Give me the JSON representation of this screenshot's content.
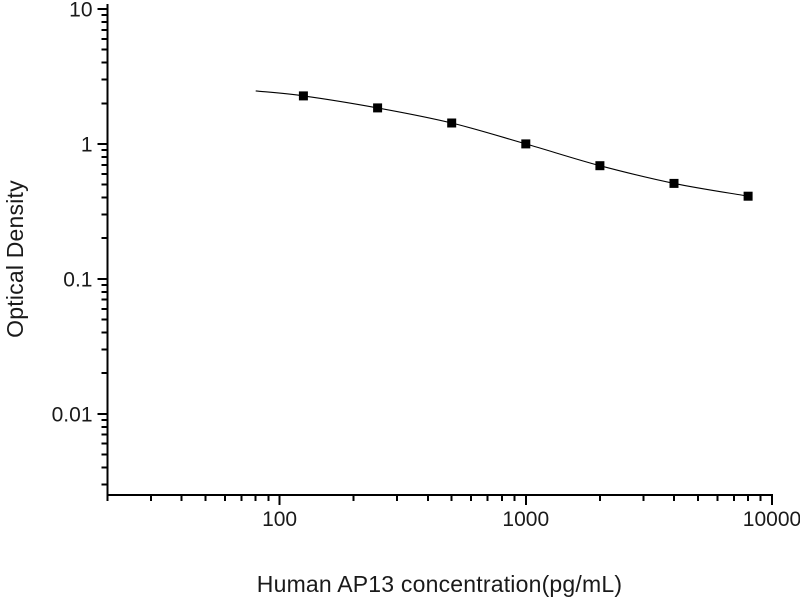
{
  "figure": {
    "background_color": "#ffffff",
    "foreground_color": "#000000"
  },
  "chart_data": {
    "type": "scatter",
    "title": "",
    "xlabel": "Human AP13 concentration(pg/mL)",
    "ylabel": "Optical Density",
    "x_scale": "log",
    "y_scale": "log",
    "xlim": [
      20,
      10000
    ],
    "ylim": [
      0.0025,
      10
    ],
    "x_major_ticks": [
      100,
      1000,
      10000
    ],
    "x_major_tick_labels": [
      "100",
      "1000",
      "10000"
    ],
    "y_major_ticks": [
      10,
      1,
      0.1,
      0.01
    ],
    "y_major_tick_labels": [
      "10",
      "1",
      "0.1",
      "0.01"
    ],
    "grid": false,
    "legend": false,
    "series": [
      {
        "name": "Human AP13 standard curve points",
        "marker": "filled-square",
        "color": "#000000",
        "x": [
          125,
          250,
          500,
          1000,
          2000,
          4000,
          8000
        ],
        "y": [
          2.27,
          1.85,
          1.43,
          1.0,
          0.69,
          0.51,
          0.41
        ]
      }
    ],
    "fit_curve": {
      "name": "fitted standard curve line",
      "color": "#000000",
      "x": [
        80,
        125,
        250,
        500,
        1000,
        2000,
        4000,
        8000
      ],
      "y": [
        2.47,
        2.27,
        1.85,
        1.43,
        1.0,
        0.69,
        0.51,
        0.41
      ]
    }
  }
}
